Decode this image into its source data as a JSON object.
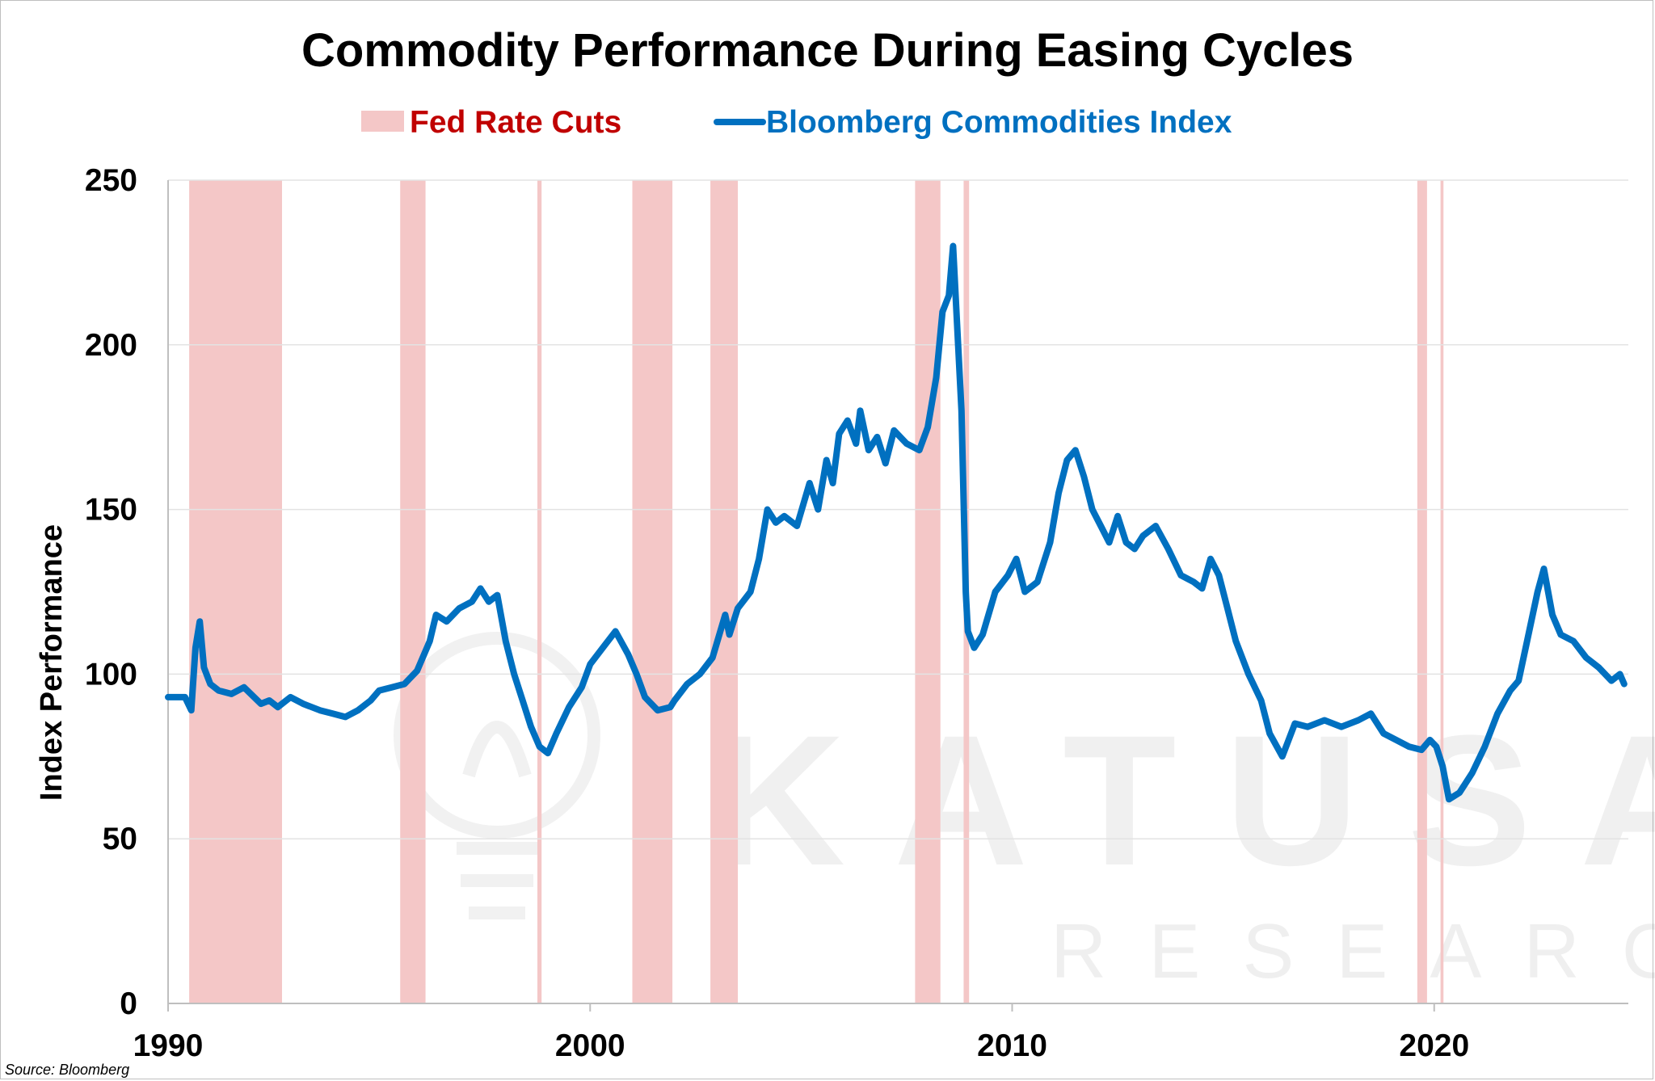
{
  "source_note": "Source:  Bloomberg",
  "watermark": {
    "line1": "KATUSA",
    "line2": "RESEARCH"
  },
  "colors": {
    "series": "#0070c0",
    "shading": "#f4c7c7",
    "title_red": "#c00000"
  },
  "chart_data": {
    "type": "line",
    "title": "Commodity Performance During Easing Cycles",
    "ylabel": "Index Performance",
    "xlabel": "",
    "xlim": [
      1990,
      2024.6
    ],
    "ylim": [
      0,
      250
    ],
    "x_ticks": [
      1990,
      2000,
      2010,
      2020
    ],
    "y_ticks": [
      0,
      50,
      100,
      150,
      200,
      250
    ],
    "grid": true,
    "legend_placement": "top-center",
    "legend": [
      {
        "name": "Fed Rate Cuts",
        "kind": "shaded-band",
        "color": "#f4c7c7"
      },
      {
        "name": "Bloomberg Commodities Index",
        "kind": "line",
        "color": "#0070c0"
      }
    ],
    "shaded_periods": [
      [
        1990.5,
        1992.7
      ],
      [
        1995.5,
        1996.1
      ],
      [
        1998.75,
        1998.85
      ],
      [
        2001.0,
        2001.95
      ],
      [
        2002.85,
        2003.5
      ],
      [
        2007.7,
        2008.3
      ],
      [
        2008.85,
        2008.98
      ],
      [
        2019.6,
        2019.83
      ],
      [
        2020.15,
        2020.22
      ]
    ],
    "series": [
      {
        "name": "Bloomberg Commodities Index",
        "x": [
          1990.0,
          1990.4,
          1990.55,
          1990.65,
          1990.75,
          1990.85,
          1991.0,
          1991.2,
          1991.5,
          1991.8,
          1992.2,
          1992.4,
          1992.6,
          1992.9,
          1993.2,
          1993.6,
          1993.9,
          1994.2,
          1994.5,
          1994.8,
          1995.0,
          1995.3,
          1995.6,
          1995.9,
          1996.2,
          1996.35,
          1996.6,
          1996.9,
          1997.2,
          1997.4,
          1997.6,
          1997.8,
          1998.0,
          1998.2,
          1998.4,
          1998.6,
          1998.8,
          1999.0,
          1999.2,
          1999.5,
          1999.8,
          2000.0,
          2000.3,
          2000.6,
          2000.9,
          2001.1,
          2001.3,
          2001.6,
          2001.9,
          2002.0,
          2002.3,
          2002.6,
          2002.9,
          2003.2,
          2003.3,
          2003.5,
          2003.8,
          2004.0,
          2004.2,
          2004.4,
          2004.6,
          2004.9,
          2005.2,
          2005.4,
          2005.6,
          2005.75,
          2005.9,
          2006.1,
          2006.3,
          2006.4,
          2006.6,
          2006.8,
          2007.0,
          2007.2,
          2007.5,
          2007.8,
          2008.0,
          2008.2,
          2008.35,
          2008.5,
          2008.6,
          2008.8,
          2008.9,
          2008.95,
          2009.1,
          2009.3,
          2009.6,
          2009.9,
          2010.1,
          2010.3,
          2010.6,
          2010.9,
          2011.1,
          2011.3,
          2011.5,
          2011.7,
          2011.9,
          2012.1,
          2012.3,
          2012.5,
          2012.7,
          2012.9,
          2013.1,
          2013.4,
          2013.7,
          2014.0,
          2014.3,
          2014.5,
          2014.7,
          2014.9,
          2015.1,
          2015.3,
          2015.6,
          2015.9,
          2016.1,
          2016.4,
          2016.7,
          2017.0,
          2017.4,
          2017.8,
          2018.2,
          2018.5,
          2018.8,
          2019.1,
          2019.4,
          2019.7,
          2019.9,
          2020.05,
          2020.2,
          2020.35,
          2020.6,
          2020.9,
          2021.2,
          2021.5,
          2021.8,
          2022.0,
          2022.2,
          2022.45,
          2022.6,
          2022.8,
          2023.0,
          2023.3,
          2023.6,
          2023.9,
          2024.2,
          2024.4,
          2024.5
        ],
        "y": [
          93,
          93,
          89,
          108,
          116,
          102,
          97,
          95,
          94,
          96,
          91,
          92,
          90,
          93,
          91,
          89,
          88,
          87,
          89,
          92,
          95,
          96,
          97,
          101,
          110,
          118,
          116,
          120,
          122,
          126,
          122,
          124,
          110,
          100,
          92,
          84,
          78,
          76,
          82,
          90,
          96,
          103,
          108,
          113,
          106,
          100,
          93,
          89,
          90,
          92,
          97,
          100,
          105,
          118,
          112,
          120,
          125,
          135,
          150,
          146,
          148,
          145,
          158,
          150,
          165,
          158,
          173,
          177,
          170,
          180,
          168,
          172,
          164,
          174,
          170,
          168,
          175,
          190,
          210,
          215,
          230,
          180,
          125,
          113,
          108,
          112,
          125,
          130,
          135,
          125,
          128,
          140,
          155,
          165,
          168,
          160,
          150,
          145,
          140,
          148,
          140,
          138,
          142,
          145,
          138,
          130,
          128,
          126,
          135,
          130,
          120,
          110,
          100,
          92,
          82,
          75,
          85,
          84,
          86,
          84,
          86,
          88,
          82,
          80,
          78,
          77,
          80,
          78,
          72,
          62,
          64,
          70,
          78,
          88,
          95,
          98,
          110,
          125,
          132,
          118,
          112,
          110,
          105,
          102,
          98,
          100,
          97
        ]
      }
    ]
  }
}
